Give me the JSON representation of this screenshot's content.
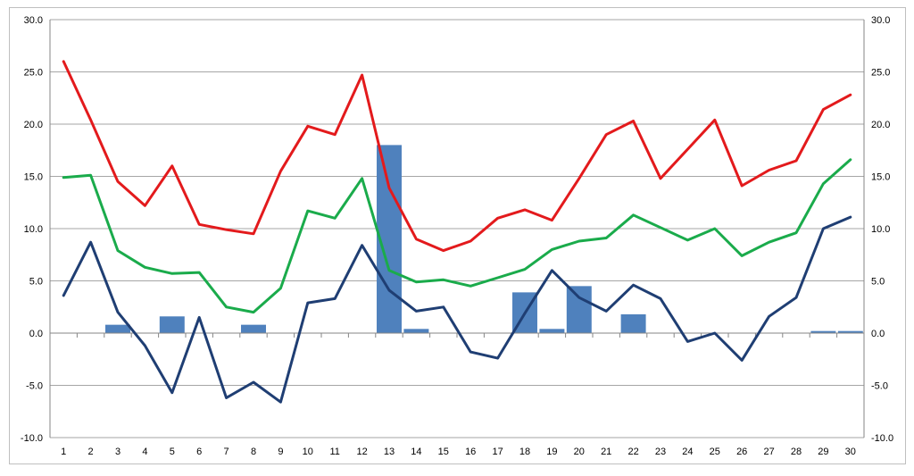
{
  "chart_data": {
    "type": "bar+line",
    "title": "",
    "xlabel": "",
    "ylabel": "",
    "ylim": [
      -10,
      30
    ],
    "y_ticks": [
      "-10.0",
      "-5.0",
      "0.0",
      "5.0",
      "10.0",
      "15.0",
      "20.0",
      "25.0",
      "30.0"
    ],
    "y_tick_values": [
      -10,
      -5,
      0,
      5,
      10,
      15,
      20,
      25,
      30
    ],
    "categories": [
      "1",
      "2",
      "3",
      "4",
      "5",
      "6",
      "7",
      "8",
      "9",
      "10",
      "11",
      "12",
      "13",
      "14",
      "15",
      "16",
      "17",
      "18",
      "19",
      "20",
      "21",
      "22",
      "23",
      "24",
      "25",
      "26",
      "27",
      "28",
      "29",
      "30"
    ],
    "grid": true,
    "legend": "none",
    "series": [
      {
        "name": "bars",
        "type": "bar",
        "color": "#4f81bd",
        "values": [
          0,
          0,
          0.8,
          0,
          1.6,
          0,
          0,
          0.8,
          0,
          0,
          0,
          0,
          18.0,
          0.4,
          0,
          0,
          0,
          3.9,
          0.4,
          4.5,
          0,
          1.8,
          0,
          0,
          0,
          0,
          0,
          0,
          0.2,
          0.2
        ]
      },
      {
        "name": "red-line",
        "type": "line",
        "color": "#e31a1c",
        "values": [
          26.0,
          20.4,
          14.5,
          12.2,
          16.0,
          10.4,
          9.9,
          9.5,
          15.5,
          19.8,
          19.0,
          24.7,
          13.9,
          9.0,
          7.9,
          8.8,
          11.0,
          11.8,
          10.8,
          14.8,
          19.0,
          20.3,
          14.8,
          17.6,
          20.4,
          14.1,
          15.6,
          16.5,
          21.4,
          22.8
        ]
      },
      {
        "name": "green-line",
        "type": "line",
        "color": "#1aab4b",
        "values": [
          14.9,
          15.1,
          7.9,
          6.3,
          5.7,
          5.8,
          2.5,
          2.0,
          4.3,
          11.7,
          11.0,
          14.8,
          6.0,
          4.9,
          5.1,
          4.5,
          5.3,
          6.1,
          8.0,
          8.8,
          9.1,
          11.3,
          10.1,
          8.9,
          10.0,
          7.4,
          8.7,
          9.6,
          14.3,
          16.6
        ]
      },
      {
        "name": "navy-line",
        "type": "line",
        "color": "#1f3e73",
        "values": [
          3.6,
          8.7,
          2.0,
          -1.2,
          -5.7,
          1.5,
          -6.2,
          -4.7,
          -6.6,
          2.9,
          3.3,
          8.4,
          4.1,
          2.1,
          2.5,
          -1.8,
          -2.4,
          1.9,
          6.0,
          3.4,
          2.1,
          4.6,
          3.3,
          -0.8,
          0.0,
          -2.6,
          1.6,
          3.4,
          10.0,
          11.1
        ]
      }
    ]
  }
}
